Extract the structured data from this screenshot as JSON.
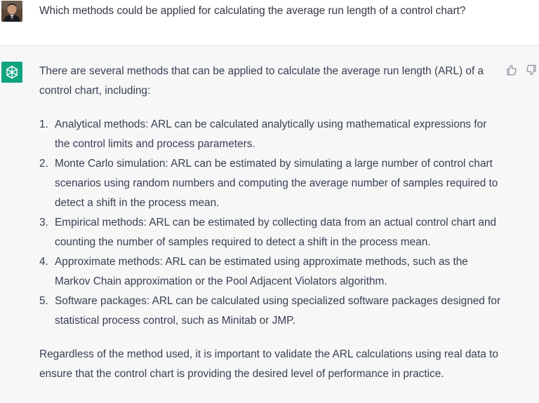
{
  "user_message": {
    "text": "Which methods could be applied for calculating the average run length of a control chart?",
    "avatar_icon": "user-photo-avatar"
  },
  "assistant_message": {
    "avatar_icon": "openai-logo-icon",
    "avatar_color": "#10a37f",
    "intro": "There are several methods that can be applied to calculate the average run length (ARL) of a control chart, including:",
    "items": [
      {
        "num": "1.",
        "text": "Analytical methods: ARL can be calculated analytically using mathematical expressions for the control limits and process parameters."
      },
      {
        "num": "2.",
        "text": "Monte Carlo simulation: ARL can be estimated by simulating a large number of control chart scenarios using random numbers and computing the average number of samples required to detect a shift in the process mean."
      },
      {
        "num": "3.",
        "text": "Empirical methods: ARL can be estimated by collecting data from an actual control chart and counting the number of samples required to detect a shift in the process mean."
      },
      {
        "num": "4.",
        "text": "Approximate methods: ARL can be estimated using approximate methods, such as the Markov Chain approximation or the Pool Adjacent Violators algorithm."
      },
      {
        "num": "5.",
        "text": "Software packages: ARL can be calculated using specialized software packages designed for statistical process control, such as Minitab or JMP."
      }
    ],
    "conclusion": "Regardless of the method used, it is important to validate the ARL calculations using real data to ensure that the control chart is providing the desired level of performance in practice.",
    "feedback_icons": [
      "thumbs-up-icon",
      "thumbs-down-icon"
    ]
  },
  "colors": {
    "user_bg": "#ffffff",
    "assistant_bg": "#f7f7f8",
    "text": "#374151",
    "accent": "#10a37f"
  }
}
